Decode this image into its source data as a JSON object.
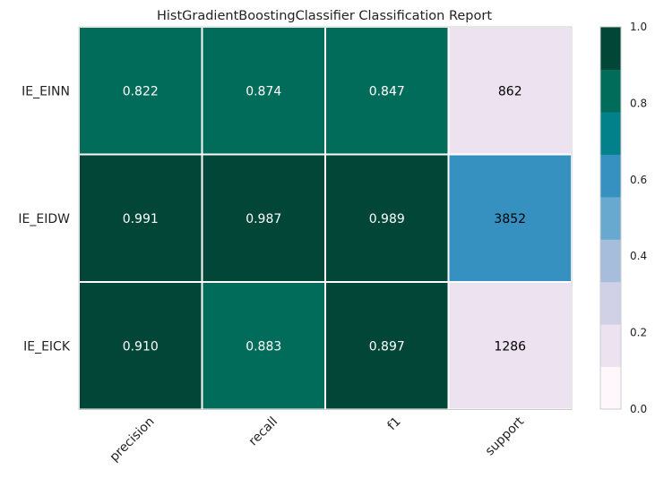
{
  "chart_data": {
    "type": "heatmap",
    "title": "HistGradientBoostingClassifier Classification Report",
    "columns": [
      "precision",
      "recall",
      "f1",
      "support"
    ],
    "rows": [
      "IE_EINN",
      "IE_EIDW",
      "IE_EICK"
    ],
    "values": [
      [
        0.822,
        0.874,
        0.847,
        862
      ],
      [
        0.991,
        0.987,
        0.989,
        3852
      ],
      [
        0.91,
        0.883,
        0.897,
        1286
      ]
    ],
    "cell_labels": [
      [
        "0.822",
        "0.874",
        "0.847",
        "862"
      ],
      [
        "0.991",
        "0.987",
        "0.989",
        "3852"
      ],
      [
        "0.910",
        "0.883",
        "0.897",
        "1286"
      ]
    ],
    "support_max": 3852,
    "colorbar": {
      "ticks": [
        "0.0",
        "0.2",
        "0.4",
        "0.6",
        "0.8",
        "1.0"
      ],
      "range": [
        0,
        1
      ],
      "colors": [
        "#fff7fb",
        "#ece2f0",
        "#d0d1e6",
        "#a6bddb",
        "#67a9cf",
        "#3690c0",
        "#02818a",
        "#016c59",
        "#014636"
      ]
    },
    "colors": {
      "dark": "#014636",
      "mid": "#016c59",
      "blue": "#3690c0",
      "pale": "#ece2f0",
      "grid": "#ffffff",
      "frame": "#cccccc"
    }
  }
}
